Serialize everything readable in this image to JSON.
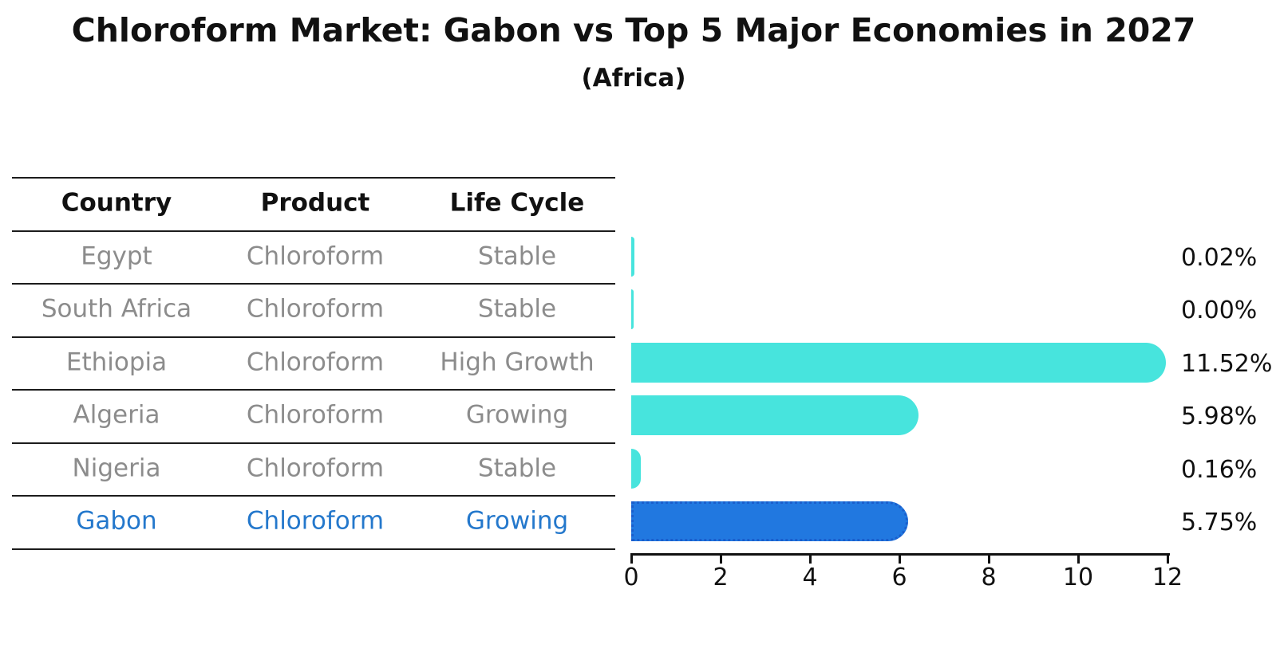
{
  "title": "Chloroform Market: Gabon vs Top 5 Major Economies in 2027",
  "subtitle": "(Africa)",
  "table": {
    "headers": [
      "Country",
      "Product",
      "Life Cycle"
    ],
    "rows": [
      {
        "country": "Egypt",
        "product": "Chloroform",
        "life_cycle": "Stable",
        "highlight": false
      },
      {
        "country": "South Africa",
        "product": "Chloroform",
        "life_cycle": "Stable",
        "highlight": false
      },
      {
        "country": "Ethiopia",
        "product": "Chloroform",
        "life_cycle": "High Growth",
        "highlight": false
      },
      {
        "country": "Algeria",
        "product": "Chloroform",
        "life_cycle": "Growing",
        "highlight": false
      },
      {
        "country": "Nigeria",
        "product": "Chloroform",
        "life_cycle": "Stable",
        "highlight": false
      },
      {
        "country": "Gabon",
        "product": "Chloroform",
        "life_cycle": "Growing",
        "highlight": true
      }
    ]
  },
  "chart_data": {
    "type": "bar",
    "orientation": "horizontal",
    "categories": [
      "Egypt",
      "South Africa",
      "Ethiopia",
      "Algeria",
      "Nigeria",
      "Gabon"
    ],
    "values": [
      0.02,
      0.0,
      11.52,
      5.98,
      0.16,
      5.75
    ],
    "value_labels": [
      "0.02%",
      "0.00%",
      "11.52%",
      "5.98%",
      "0.16%",
      "5.75%"
    ],
    "highlight_index": 5,
    "xlim": [
      0,
      12
    ],
    "xticks": [
      "0",
      "2",
      "4",
      "6",
      "8",
      "10",
      "12"
    ],
    "grid": false,
    "legend": "none"
  },
  "colors": {
    "bar_cyan": "#47e4dd",
    "bar_blue": "#2178e0",
    "bar_blue_border": "#1a5ecc",
    "highlight_text": "#2478cc",
    "row_text": "#8c8c8c",
    "header_text": "#111111"
  }
}
